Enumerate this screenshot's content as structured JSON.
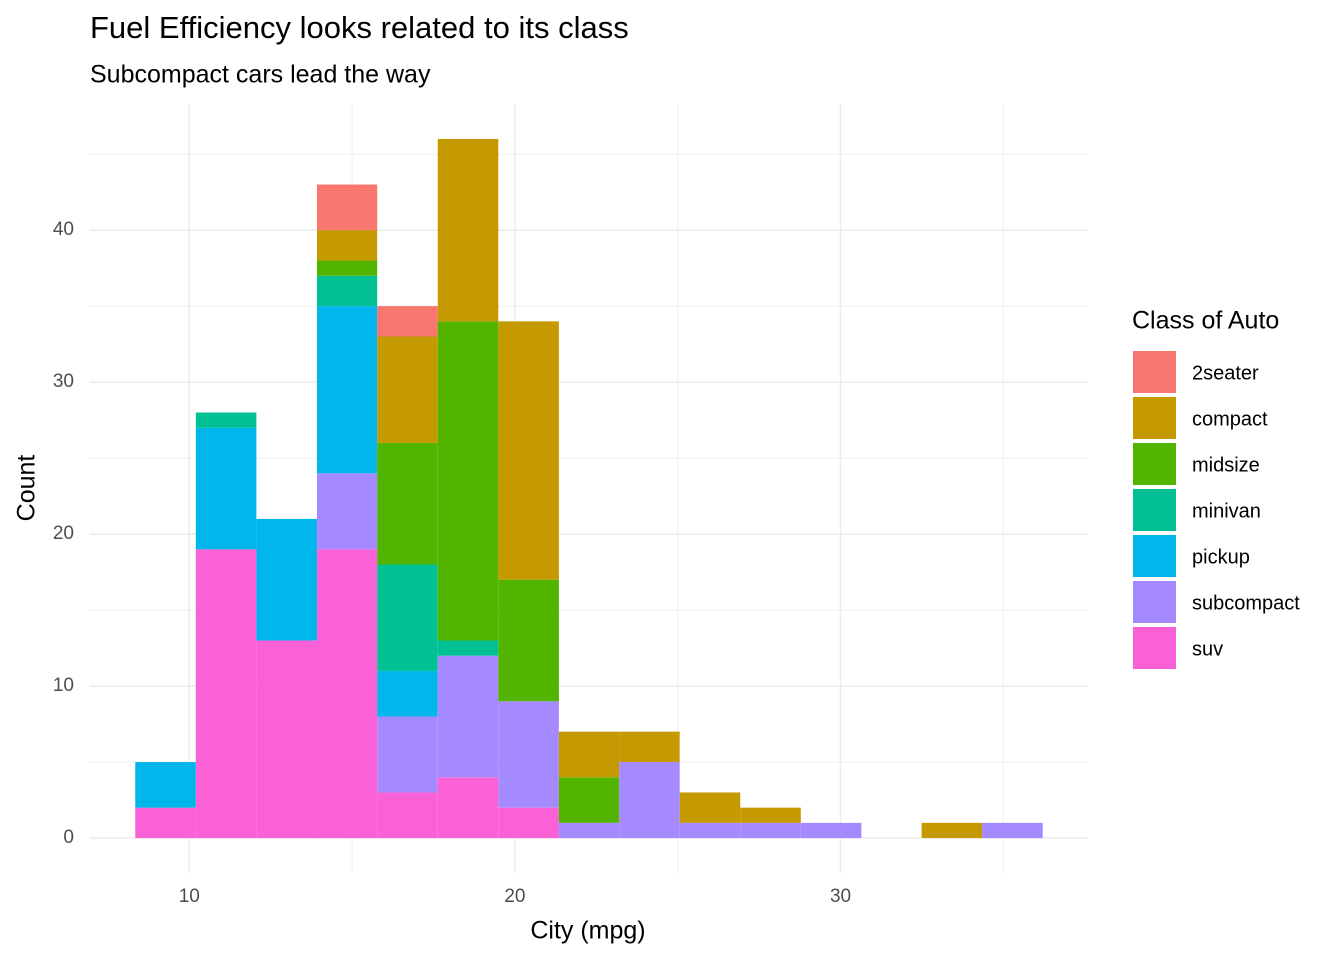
{
  "chart_data": {
    "type": "histogram",
    "title": "Fuel Efficiency looks related to its class",
    "subtitle": "Subcompact cars lead the way",
    "x_label": "City (mpg)",
    "y_label": "Count",
    "legend_title": "Class of Auto",
    "bins": [
      8.34,
      10.2,
      12.06,
      13.92,
      15.77,
      17.63,
      19.49,
      21.35,
      23.2,
      25.06,
      26.92,
      28.78,
      30.64,
      32.49,
      34.35,
      36.21
    ],
    "series": [
      {
        "name": "2seater",
        "color": "#F8766D",
        "values": [
          0,
          0,
          0,
          3,
          2,
          0,
          0,
          0,
          0,
          0,
          0,
          0,
          0,
          0,
          0
        ]
      },
      {
        "name": "compact",
        "color": "#C49A00",
        "values": [
          0,
          0,
          0,
          2,
          7,
          12,
          17,
          3,
          2,
          2,
          1,
          0,
          0,
          1,
          0
        ]
      },
      {
        "name": "midsize",
        "color": "#53B400",
        "values": [
          0,
          0,
          0,
          1,
          8,
          21,
          8,
          3,
          0,
          0,
          0,
          0,
          0,
          0,
          0
        ]
      },
      {
        "name": "minivan",
        "color": "#00C094",
        "values": [
          0,
          1,
          0,
          2,
          7,
          1,
          0,
          0,
          0,
          0,
          0,
          0,
          0,
          0,
          0
        ]
      },
      {
        "name": "pickup",
        "color": "#00B6EB",
        "values": [
          3,
          8,
          8,
          11,
          3,
          0,
          0,
          0,
          0,
          0,
          0,
          0,
          0,
          0,
          0
        ]
      },
      {
        "name": "subcompact",
        "color": "#A58AFF",
        "values": [
          0,
          0,
          0,
          5,
          5,
          8,
          7,
          1,
          5,
          1,
          1,
          1,
          0,
          0,
          1
        ]
      },
      {
        "name": "suv",
        "color": "#FB61D7",
        "values": [
          2,
          19,
          13,
          19,
          3,
          4,
          2,
          0,
          0,
          0,
          0,
          0,
          0,
          0,
          0
        ]
      }
    ],
    "xlim": [
      6.95,
      37.6
    ],
    "ylim": [
      -2.3,
      48.3
    ],
    "xticks": [
      10,
      20,
      30
    ],
    "yticks": [
      0,
      10,
      20,
      30,
      40
    ],
    "minor_xticks": [
      15,
      25,
      35
    ],
    "minor_yticks": [
      5,
      15,
      25,
      35,
      45
    ],
    "grid": true,
    "legend_position": "right"
  }
}
